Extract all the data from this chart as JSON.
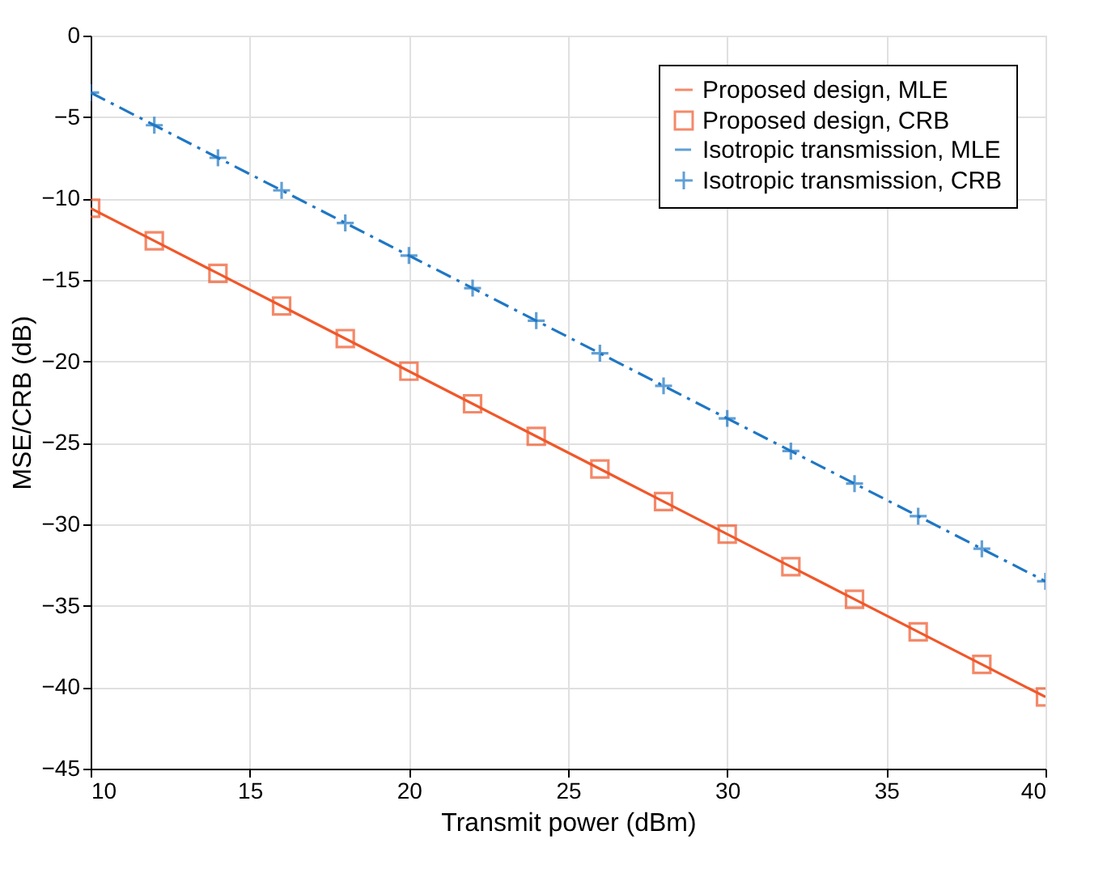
{
  "chart_data": {
    "type": "line",
    "xlabel": "Transmit power (dBm)",
    "ylabel": "MSE/CRB (dB)",
    "x": [
      10,
      12,
      14,
      16,
      18,
      20,
      22,
      24,
      26,
      28,
      30,
      32,
      34,
      36,
      38,
      40
    ],
    "series": [
      {
        "name": "Proposed design, MLE",
        "type": "line",
        "color": "#f0582a",
        "line_style": "solid",
        "marker": "none",
        "values": [
          -10.6,
          -12.6,
          -14.6,
          -16.6,
          -18.6,
          -20.6,
          -22.6,
          -24.6,
          -26.6,
          -28.6,
          -30.6,
          -32.6,
          -34.6,
          -36.6,
          -38.6,
          -40.6
        ]
      },
      {
        "name": "Proposed design, CRB",
        "type": "scatter",
        "color": "#f0582a",
        "marker": "square",
        "values": [
          -10.6,
          -12.6,
          -14.6,
          -16.6,
          -18.6,
          -20.6,
          -22.6,
          -24.6,
          -26.6,
          -28.6,
          -30.6,
          -32.6,
          -34.6,
          -36.6,
          -38.6,
          -40.6
        ]
      },
      {
        "name": "Isotropic transmission, MLE",
        "type": "line",
        "color": "#1f77c4",
        "line_style": "dashdot",
        "marker": "none",
        "values": [
          -3.5,
          -5.5,
          -7.5,
          -9.5,
          -11.5,
          -13.5,
          -15.5,
          -17.5,
          -19.5,
          -21.5,
          -23.5,
          -25.5,
          -27.5,
          -29.5,
          -31.5,
          -33.5
        ]
      },
      {
        "name": "Isotropic transmission, CRB",
        "type": "scatter",
        "color": "#1f77c4",
        "marker": "cross",
        "values": [
          -3.5,
          -5.5,
          -7.5,
          -9.5,
          -11.5,
          -13.5,
          -15.5,
          -17.5,
          -19.5,
          -21.5,
          -23.5,
          -25.5,
          -27.5,
          -29.5,
          -31.5,
          -33.5
        ]
      }
    ],
    "xlim": [
      10,
      40
    ],
    "xticks": [
      10,
      15,
      20,
      25,
      30,
      35,
      40
    ],
    "ylim": [
      -45,
      0
    ],
    "yticks": [
      -45,
      -40,
      -35,
      -30,
      -25,
      -20,
      -15,
      -10,
      -5,
      0
    ],
    "grid": true,
    "legend": "top right"
  }
}
